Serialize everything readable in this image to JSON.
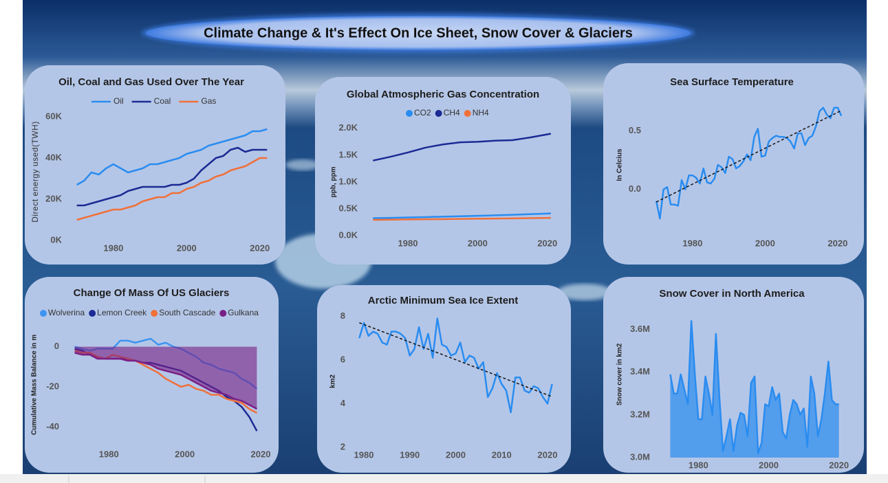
{
  "title": "Climate Change & It's Effect On Ice Sheet, Snow Cover & Glaciers",
  "chart_data": [
    {
      "type": "line",
      "title": "Oil, Coal and Gas Used Over The Year",
      "y_label": "Direct energy used(TWH)",
      "legend": "top",
      "legend_marker": "line",
      "x": [
        1970,
        1972,
        1974,
        1976,
        1978,
        1980,
        1982,
        1984,
        1986,
        1988,
        1990,
        1992,
        1994,
        1996,
        1998,
        2000,
        2002,
        2004,
        2006,
        2008,
        2010,
        2012,
        2014,
        2016,
        2018,
        2020,
        2022
      ],
      "series": [
        {
          "name": "Oil",
          "color": "#2a8cf0",
          "values": [
            27000,
            29000,
            33000,
            32000,
            35000,
            37000,
            35000,
            33000,
            34000,
            35000,
            37000,
            37000,
            38000,
            39000,
            40000,
            42000,
            43000,
            44000,
            46000,
            47000,
            48000,
            49000,
            50000,
            51000,
            53000,
            53000,
            54000
          ]
        },
        {
          "name": "Coal",
          "color": "#1b2a94",
          "values": [
            17000,
            17000,
            18000,
            19000,
            20000,
            21000,
            22000,
            24000,
            25000,
            26000,
            26000,
            26000,
            26000,
            27000,
            27000,
            28000,
            30000,
            34000,
            37000,
            40000,
            41000,
            44000,
            45000,
            43000,
            44000,
            44000,
            44000
          ]
        },
        {
          "name": "Gas",
          "color": "#f0703a",
          "values": [
            10000,
            11000,
            12000,
            13000,
            14000,
            15000,
            15000,
            16000,
            17000,
            19000,
            20000,
            21000,
            21000,
            23000,
            23000,
            25000,
            26000,
            28000,
            29000,
            31000,
            32000,
            34000,
            35000,
            36000,
            38000,
            40000,
            40000
          ]
        }
      ],
      "xlim": [
        1968,
        2024
      ],
      "xticks": [
        1980,
        2000,
        2020
      ],
      "ylim": [
        0,
        65000
      ],
      "yticks": [
        {
          "value": 0,
          "label": "0K"
        },
        {
          "value": 20000,
          "label": "20K"
        },
        {
          "value": 40000,
          "label": "40K"
        },
        {
          "value": 60000,
          "label": "60K"
        }
      ]
    },
    {
      "type": "line",
      "title": "Global Atmospheric Gas Concentration",
      "y_label": "ppb, ppm",
      "legend": "top",
      "legend_marker": "circle",
      "x": [
        1970,
        1975,
        1980,
        1985,
        1990,
        1995,
        2000,
        2005,
        2010,
        2015,
        2021
      ],
      "series": [
        {
          "name": "CO2",
          "color": "#2a8cf0",
          "values": [
            326,
            331,
            339,
            346,
            354,
            361,
            369,
            380,
            389,
            400,
            414
          ]
        },
        {
          "name": "CH4",
          "color": "#1b2a94",
          "values": [
            1400,
            1470,
            1550,
            1640,
            1700,
            1740,
            1750,
            1770,
            1780,
            1830,
            1900
          ]
        },
        {
          "name": "NH4",
          "color": "#f0703a",
          "values": [
            295,
            298,
            302,
            305,
            308,
            312,
            315,
            318,
            322,
            326,
            332
          ]
        }
      ],
      "xlim": [
        1966,
        2023
      ],
      "xticks": [
        1980,
        2000,
        2020
      ],
      "ylim": [
        0,
        2100
      ],
      "yticks": [
        {
          "value": 0,
          "label": "0.0K"
        },
        {
          "value": 500,
          "label": "0.5K"
        },
        {
          "value": 1000,
          "label": "1.0K"
        },
        {
          "value": 1500,
          "label": "1.5K"
        },
        {
          "value": 2000,
          "label": "2.0K"
        }
      ]
    },
    {
      "type": "line",
      "title": "Sea Surface Temperature",
      "y_label": "In Celcius",
      "trendline": true,
      "x": [
        1970,
        1971,
        1972,
        1973,
        1974,
        1975,
        1976,
        1977,
        1978,
        1979,
        1980,
        1981,
        1982,
        1983,
        1984,
        1985,
        1986,
        1987,
        1988,
        1989,
        1990,
        1991,
        1992,
        1993,
        1994,
        1995,
        1996,
        1997,
        1998,
        1999,
        2000,
        2001,
        2002,
        2003,
        2004,
        2005,
        2006,
        2007,
        2008,
        2009,
        2010,
        2011,
        2012,
        2013,
        2014,
        2015,
        2016,
        2017,
        2018,
        2019,
        2020,
        2021
      ],
      "values": [
        -0.1,
        -0.25,
        0.0,
        0.02,
        -0.13,
        -0.13,
        -0.14,
        0.08,
        0.0,
        0.12,
        0.12,
        0.1,
        0.05,
        0.18,
        0.06,
        0.05,
        0.09,
        0.21,
        0.19,
        0.14,
        0.28,
        0.26,
        0.18,
        0.2,
        0.24,
        0.3,
        0.25,
        0.45,
        0.52,
        0.28,
        0.29,
        0.41,
        0.44,
        0.46,
        0.45,
        0.45,
        0.44,
        0.41,
        0.35,
        0.48,
        0.48,
        0.38,
        0.44,
        0.46,
        0.54,
        0.67,
        0.7,
        0.64,
        0.61,
        0.7,
        0.7,
        0.63
      ],
      "color": "#2a8cf0",
      "xlim": [
        1966,
        2024
      ],
      "xticks": [
        1980,
        2000,
        2020
      ],
      "ylim": [
        -0.32,
        0.74
      ],
      "yticks": [
        {
          "value": 0,
          "label": "0.0"
        },
        0.5
      ]
    },
    {
      "type": "line",
      "title": "Change Of Mass Of US Glaciers",
      "y_label": "Cumulative Mass Balance in m",
      "legend": "top",
      "legend_marker": "circle",
      "x": [
        1971,
        1973,
        1975,
        1977,
        1979,
        1981,
        1983,
        1985,
        1987,
        1989,
        1991,
        1993,
        1995,
        1997,
        1999,
        2001,
        2003,
        2005,
        2007,
        2009,
        2011,
        2013,
        2015,
        2017,
        2019
      ],
      "series": [
        {
          "name": "Wolverina",
          "color": "#3d94f0",
          "values": [
            0,
            -1,
            -2,
            -1,
            -1,
            -1,
            3,
            3,
            2,
            3,
            4,
            1,
            2,
            0,
            -1,
            -3,
            -5,
            -8,
            -9,
            -11,
            -12,
            -13,
            -16,
            -18,
            -21
          ]
        },
        {
          "name": "Lemon Creek",
          "color": "#1b2a94",
          "values": [
            -1,
            -2,
            -4,
            -5,
            -6,
            -6,
            -6,
            -6,
            -7,
            -8,
            -8,
            -9,
            -10,
            -11,
            -12,
            -14,
            -16,
            -18,
            -20,
            -22,
            -25,
            -27,
            -30,
            -35,
            -42
          ]
        },
        {
          "name": "South Cascade",
          "color": "#f0703a",
          "values": [
            -2,
            -3,
            -3,
            -5,
            -6,
            -4,
            -5,
            -6,
            -7,
            -9,
            -11,
            -13,
            -16,
            -18,
            -20,
            -19,
            -21,
            -22,
            -24,
            -24,
            -26,
            -27,
            -28,
            -31,
            -33
          ]
        },
        {
          "name": "Gulkana",
          "color": "#7a1f86",
          "fill": true,
          "values": [
            -3,
            -4,
            -4,
            -6,
            -6,
            -6,
            -6,
            -7,
            -7,
            -8,
            -9,
            -11,
            -12,
            -13,
            -14,
            -16,
            -18,
            -20,
            -22,
            -23,
            -24,
            -26,
            -27,
            -29,
            -31
          ]
        }
      ],
      "xlim": [
        1966,
        2022
      ],
      "xticks": [
        1980,
        2000,
        2020
      ],
      "ylim": [
        -45,
        5
      ],
      "yticks": [
        0,
        -20,
        -40
      ]
    },
    {
      "type": "line",
      "title": "Arctic Minimum Sea Ice Extent",
      "y_label": "km2",
      "trendline": true,
      "x": [
        1979,
        1980,
        1981,
        1982,
        1983,
        1984,
        1985,
        1986,
        1987,
        1988,
        1989,
        1990,
        1991,
        1992,
        1993,
        1994,
        1995,
        1996,
        1997,
        1998,
        1999,
        2000,
        2001,
        2002,
        2003,
        2004,
        2005,
        2006,
        2007,
        2008,
        2009,
        2010,
        2011,
        2012,
        2013,
        2014,
        2015,
        2016,
        2017,
        2018,
        2019,
        2020,
        2021
      ],
      "values": [
        7.0,
        7.7,
        7.1,
        7.3,
        7.2,
        6.8,
        6.7,
        7.3,
        7.3,
        7.2,
        7.0,
        6.2,
        6.5,
        7.5,
        6.5,
        7.2,
        6.1,
        7.9,
        6.7,
        6.6,
        6.2,
        6.3,
        6.8,
        5.9,
        6.2,
        6.1,
        5.6,
        5.9,
        4.3,
        4.7,
        5.4,
        4.9,
        4.6,
        3.6,
        5.2,
        5.2,
        4.6,
        4.5,
        4.8,
        4.7,
        4.3,
        4.0,
        4.9
      ],
      "color": "#2a8cf0",
      "xlim": [
        1977,
        2023
      ],
      "xticks": [
        1980,
        1990,
        2000,
        2010,
        2020
      ],
      "ylim": [
        2,
        8.2
      ],
      "yticks": [
        2,
        4,
        6,
        8
      ]
    },
    {
      "type": "area",
      "title": "Snow Cover in North America",
      "y_label": "Snow cover in km2",
      "x": [
        1972,
        1973,
        1974,
        1975,
        1976,
        1977,
        1978,
        1979,
        1980,
        1981,
        1982,
        1983,
        1984,
        1985,
        1986,
        1987,
        1988,
        1989,
        1990,
        1991,
        1992,
        1993,
        1994,
        1995,
        1996,
        1997,
        1998,
        1999,
        2000,
        2001,
        2002,
        2003,
        2004,
        2005,
        2006,
        2007,
        2008,
        2009,
        2010,
        2011,
        2012,
        2013,
        2014,
        2015,
        2016,
        2017,
        2018,
        2019,
        2020
      ],
      "values": [
        3390000,
        3300000,
        3300000,
        3390000,
        3320000,
        3250000,
        3640000,
        3390000,
        3180000,
        3180000,
        3380000,
        3300000,
        3200000,
        3580000,
        3280000,
        3030000,
        3100000,
        3180000,
        3030000,
        3150000,
        3210000,
        3200000,
        3100000,
        3350000,
        3380000,
        3020000,
        3070000,
        3250000,
        3240000,
        3330000,
        3270000,
        3300000,
        3120000,
        3090000,
        3200000,
        3270000,
        3250000,
        3200000,
        3230000,
        3050000,
        3380000,
        3300000,
        3100000,
        3180000,
        3300000,
        3450000,
        3270000,
        3250000,
        3250000
      ],
      "color": "#2a8cf0",
      "xlim": [
        1968,
        2023
      ],
      "xticks": [
        1980,
        2000,
        2020
      ],
      "ylim": [
        3000000,
        3660000
      ],
      "yticks": [
        {
          "value": 3000000,
          "label": "3.0M"
        },
        {
          "value": 3200000,
          "label": "3.2M"
        },
        {
          "value": 3400000,
          "label": "3.4M"
        },
        {
          "value": 3600000,
          "label": "3.6M"
        }
      ]
    }
  ]
}
